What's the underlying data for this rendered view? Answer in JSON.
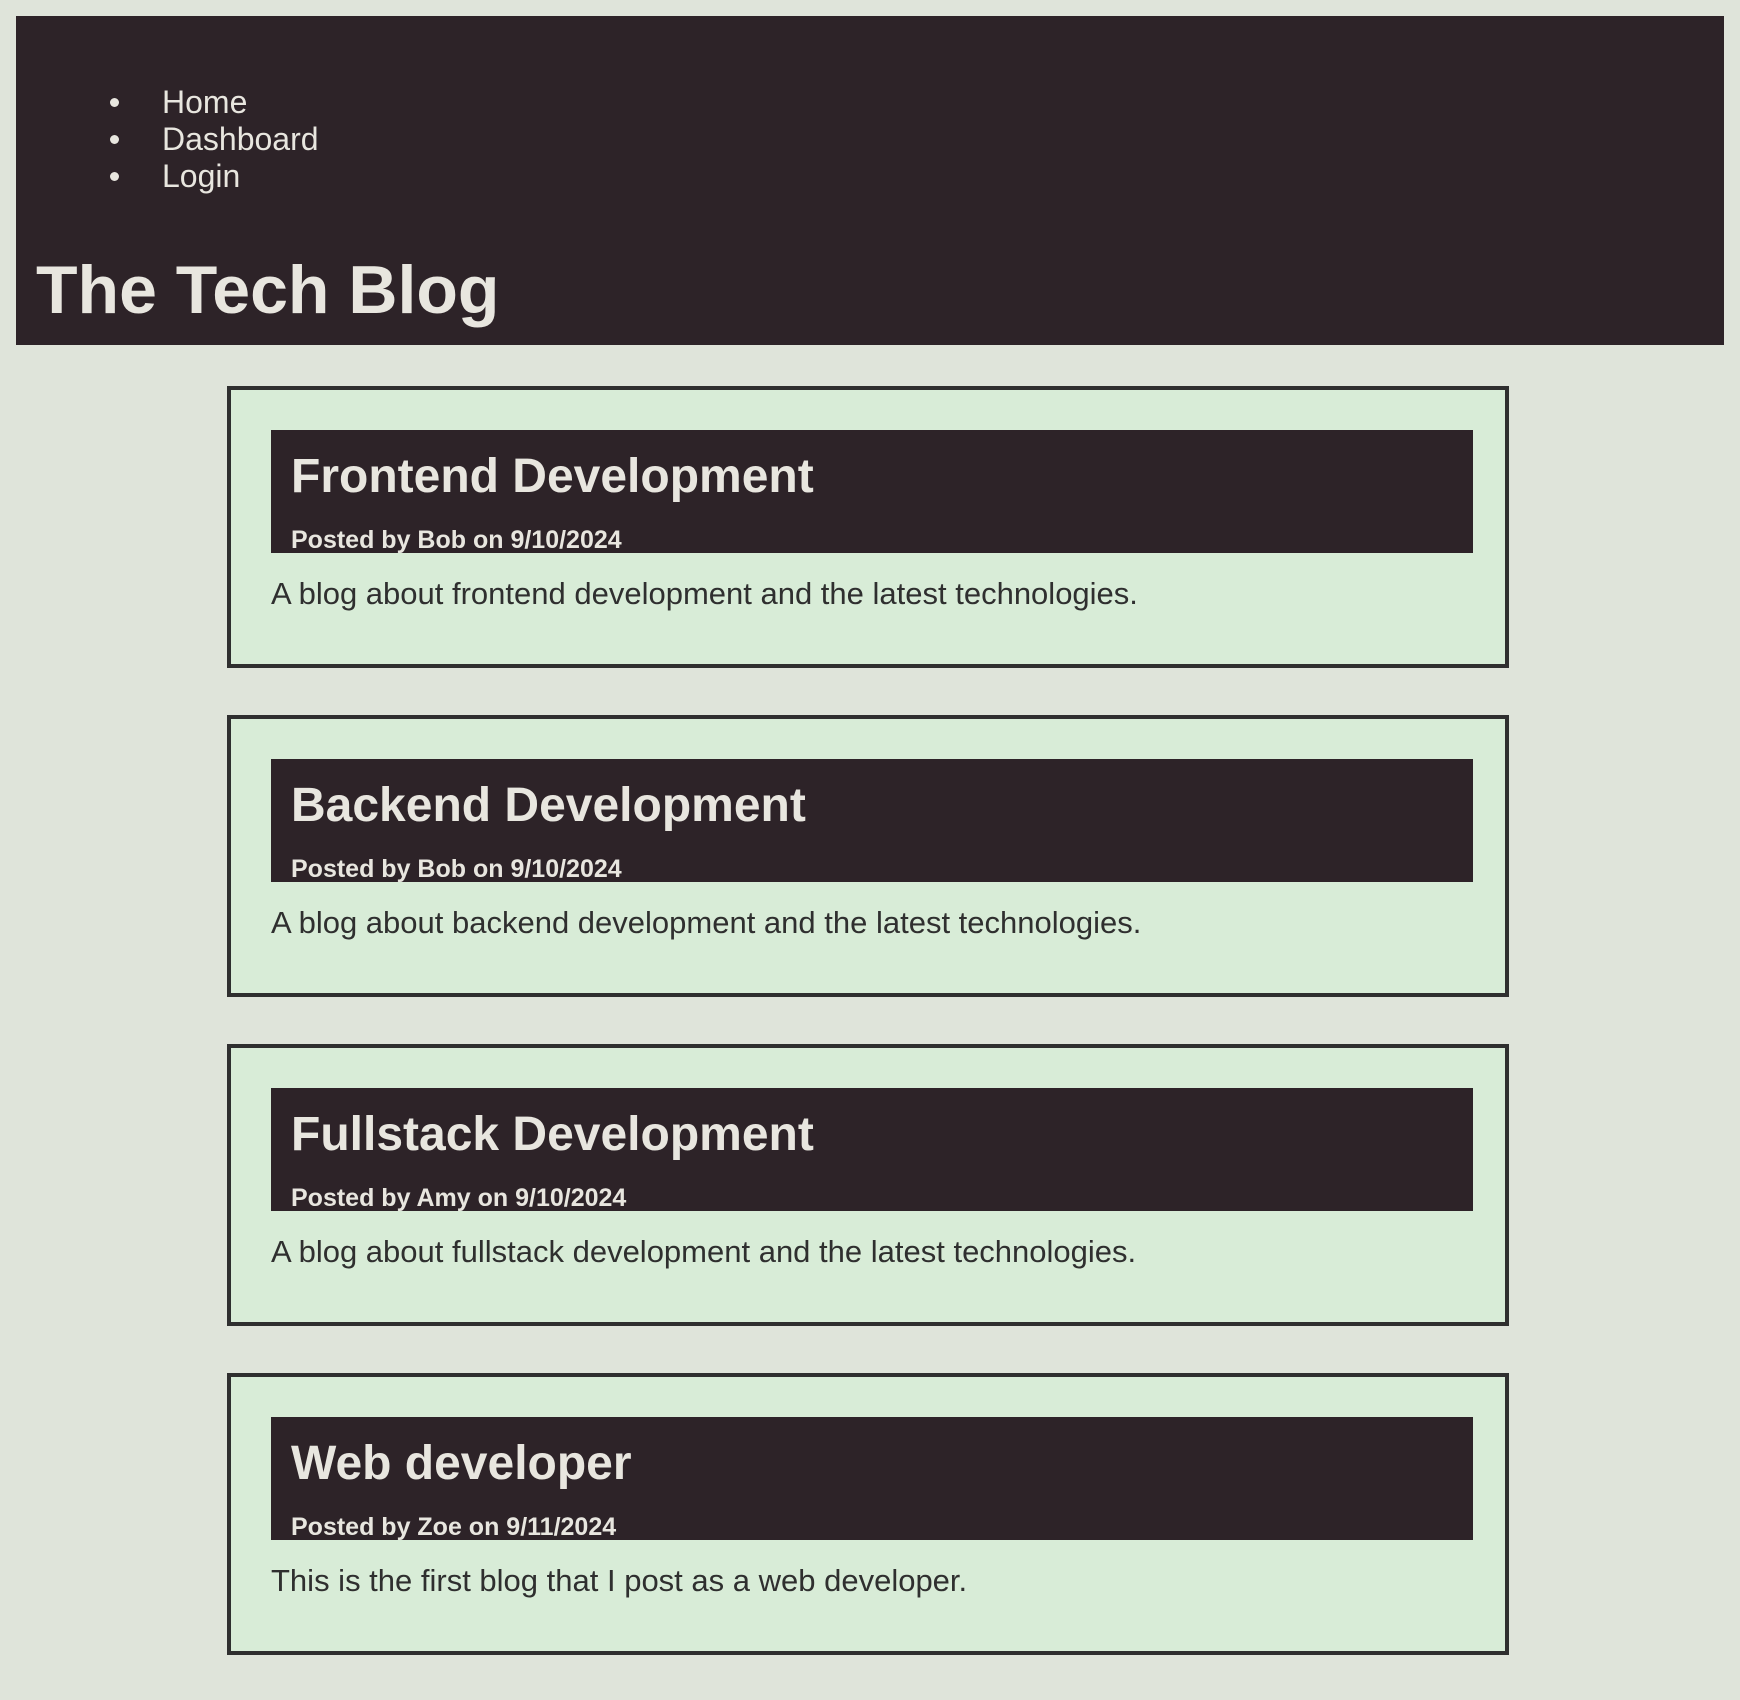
{
  "nav": {
    "items": [
      "Home",
      "Dashboard",
      "Login"
    ]
  },
  "site": {
    "title": "The Tech Blog"
  },
  "posts": [
    {
      "title": "Frontend Development",
      "meta": "Posted by Bob on 9/10/2024",
      "body": "A blog about frontend development and the latest technologies."
    },
    {
      "title": "Backend Development",
      "meta": "Posted by Bob on 9/10/2024",
      "body": "A blog about backend development and the latest technologies."
    },
    {
      "title": "Fullstack Development",
      "meta": "Posted by Amy on 9/10/2024",
      "body": "A blog about fullstack development and the latest technologies."
    },
    {
      "title": "Web developer",
      "meta": "Posted by Zoe on 9/11/2024",
      "body": "This is the first blog that I post as a web developer."
    }
  ]
}
